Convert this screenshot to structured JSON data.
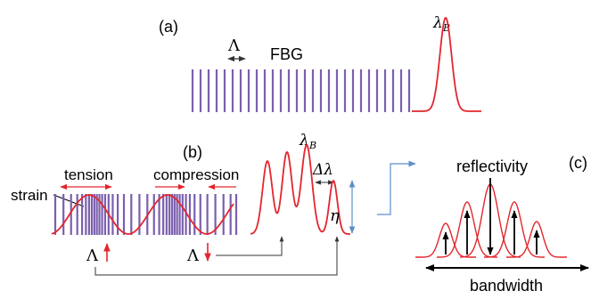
{
  "labels": {
    "panel_a": "(a)",
    "panel_b": "(b)",
    "panel_c": "(c)",
    "period_a": "Λ",
    "fbg": "FBG",
    "bragg_a": "λ",
    "bragg_a_sub": "B",
    "tension": "tension",
    "compression": "compression",
    "strain": "strain",
    "bragg_b": "λ",
    "bragg_b_sub": "B",
    "delta_lambda": "Δλ",
    "eta": "η",
    "period_up": "Λ",
    "period_down": "Λ",
    "reflectivity": "reflectivity",
    "bandwidth": "bandwidth"
  },
  "colors": {
    "grating": "#7b5fae",
    "spectrum": "#e3262d",
    "arrow_red": "#e3262d",
    "arrow_blue": "#5b8fc9",
    "arrow_dark": "#333333"
  },
  "icons": {
    "period_up_arrow": "arrow-up-icon",
    "period_down_arrow": "arrow-down-icon"
  }
}
